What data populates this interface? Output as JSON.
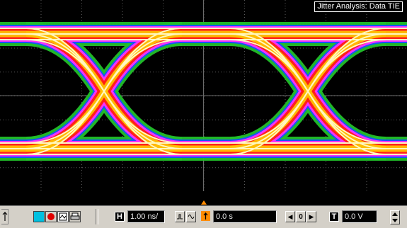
{
  "display": {
    "analysis_title": "Jitter Analysis: Data TIE",
    "colors": {
      "background": "#000000",
      "grid": "#3a3a3a",
      "density_low": "#22c02a",
      "density_mid_low": "#1450ff",
      "density_mid": "#ff30ff",
      "density_mid_high": "#ff2010",
      "density_high": "#ffc000",
      "density_peak": "#fff8c0",
      "trigger_marker": "#ff8c00"
    }
  },
  "toolbar": {
    "horizontal_label": "H",
    "timebase_value": "1.00 ns/",
    "delay_value": "0.0 s",
    "trigger_label": "T",
    "trigger_level_value": "0.0 V",
    "left_arrow": "◀",
    "zero_label": "0",
    "right_arrow": "▶",
    "icons": [
      "trigger-marker-icon",
      "channel-cyan-icon",
      "channel-red-icon",
      "waveform-icon",
      "print-icon",
      "pulse-icon",
      "sine-icon",
      "delay-marker-icon",
      "spinner-icon"
    ]
  }
}
